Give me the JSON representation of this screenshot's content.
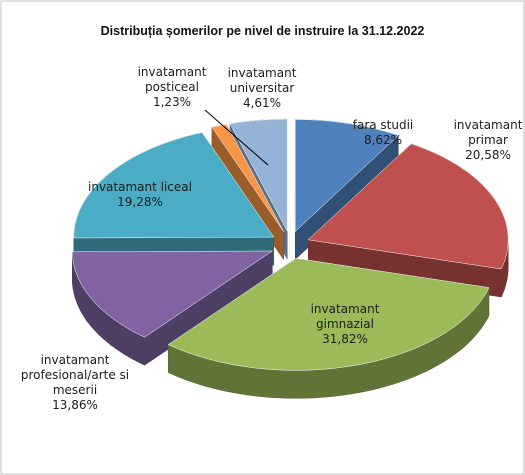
{
  "chart_data": {
    "type": "pie",
    "title": "Distribuția șomerilor pe nivel de  instruire la 31.12.2022",
    "categories": [
      "fara studii",
      "invatamant primar",
      "invatamant gimnazial",
      "invatamant profesional/arte si meserii",
      "invatamant liceal",
      "invatamant posticeal",
      "invatamant universitar"
    ],
    "values": [
      8.62,
      20.58,
      31.82,
      13.86,
      19.28,
      1.23,
      4.61
    ],
    "value_labels": [
      "8,62%",
      "20,58%",
      "31,82%",
      "13,86%",
      "19,28%",
      "1,23%",
      "4,61%"
    ],
    "colors": [
      "#4f81bd",
      "#c0504d",
      "#9bbb59",
      "#8064a2",
      "#4bacc6",
      "#f79646",
      "#95b3d7"
    ]
  }
}
